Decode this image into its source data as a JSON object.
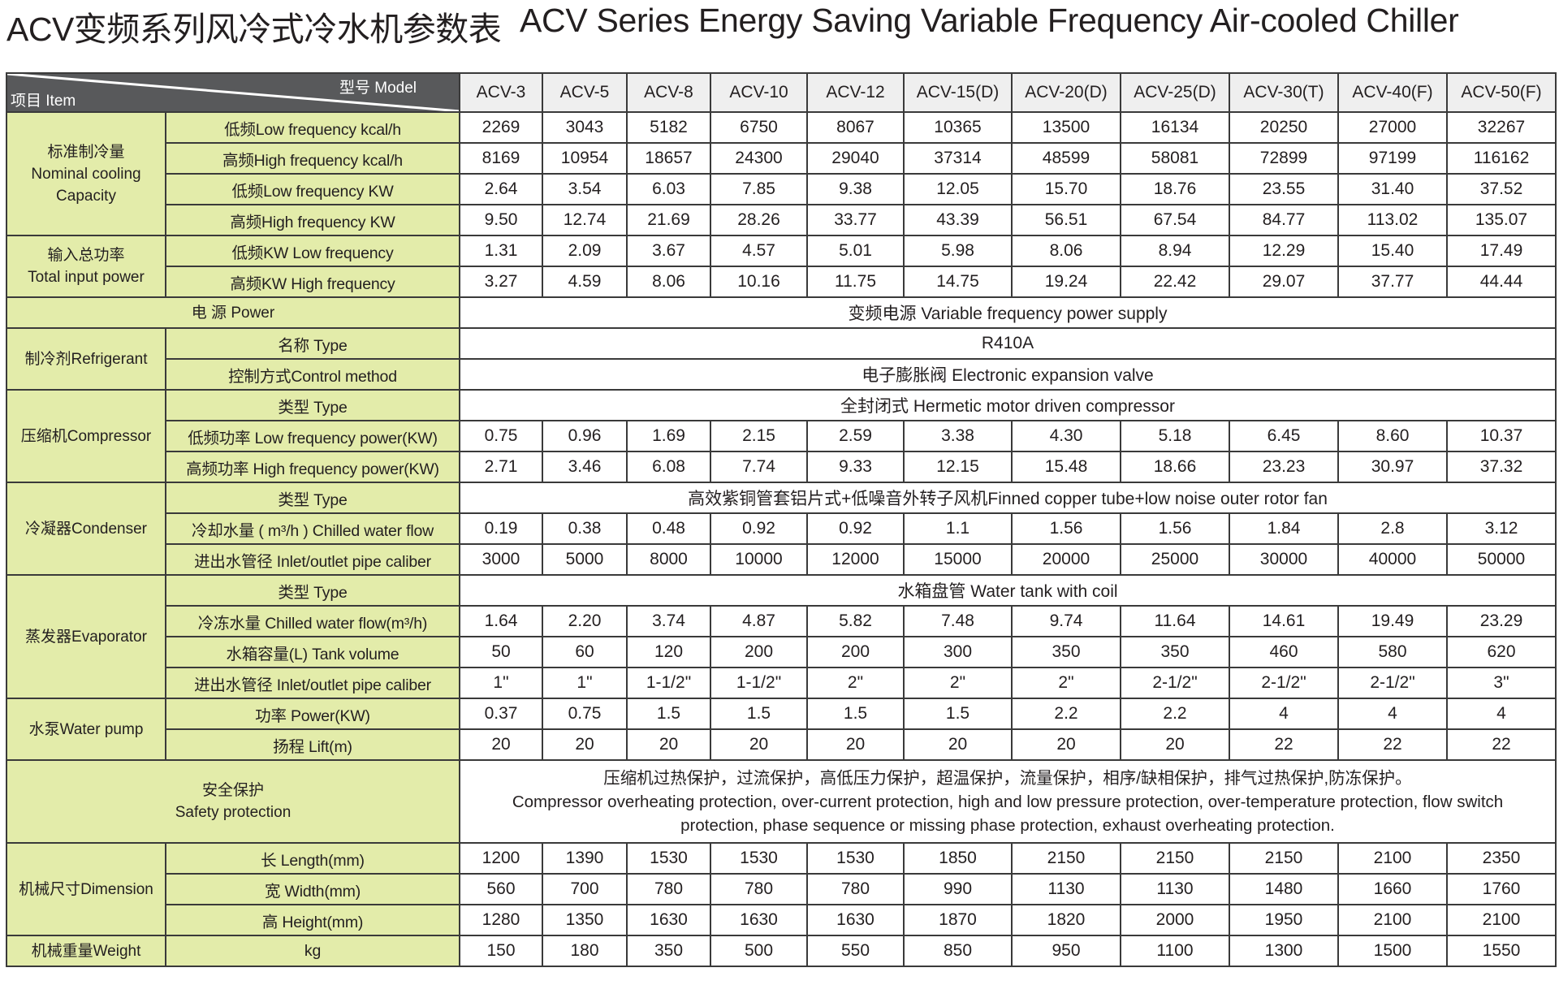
{
  "title_cn": "ACV变频系列风冷式冷水机参数表",
  "title_en": "ACV Series Energy Saving Variable Frequency Air-cooled Chiller",
  "colors": {
    "label_bg": "#e3ecaa",
    "header_dark": "#58595b",
    "header_light": "#efefef",
    "border": "#3a3a3a"
  },
  "header": {
    "model_label": "型号  Model",
    "item_label": "项目  Item",
    "models": [
      "ACV-3",
      "ACV-5",
      "ACV-8",
      "ACV-10",
      "ACV-12",
      "ACV-15(D)",
      "ACV-20(D)",
      "ACV-25(D)",
      "ACV-30(T)",
      "ACV-40(F)",
      "ACV-50(F)"
    ]
  },
  "groups": [
    {
      "label": "标准制冷量\nNominal cooling\nCapacity",
      "rows": [
        {
          "label": "低频Low frequency  kcal/h",
          "values": [
            "2269",
            "3043",
            "5182",
            "6750",
            "8067",
            "10365",
            "13500",
            "16134",
            "20250",
            "27000",
            "32267"
          ]
        },
        {
          "label": "高频High frequency  kcal/h",
          "values": [
            "8169",
            "10954",
            "18657",
            "24300",
            "29040",
            "37314",
            "48599",
            "58081",
            "72899",
            "97199",
            "116162"
          ]
        },
        {
          "label": "低频Low frequency KW",
          "values": [
            "2.64",
            "3.54",
            "6.03",
            "7.85",
            "9.38",
            "12.05",
            "15.70",
            "18.76",
            "23.55",
            "31.40",
            "37.52"
          ]
        },
        {
          "label": "高频High frequency KW",
          "values": [
            "9.50",
            "12.74",
            "21.69",
            "28.26",
            "33.77",
            "43.39",
            "56.51",
            "67.54",
            "84.77",
            "113.02",
            "135.07"
          ]
        }
      ]
    },
    {
      "label": "输入总功率\nTotal input power",
      "rows": [
        {
          "label": "低频KW    Low frequency",
          "values": [
            "1.31",
            "2.09",
            "3.67",
            "4.57",
            "5.01",
            "5.98",
            "8.06",
            "8.94",
            "12.29",
            "15.40",
            "17.49"
          ]
        },
        {
          "label": "高频KW   High frequency",
          "values": [
            "3.27",
            "4.59",
            "8.06",
            "10.16",
            "11.75",
            "14.75",
            "19.24",
            "22.42",
            "29.07",
            "37.77",
            "44.44"
          ]
        }
      ]
    },
    {
      "label": "电      源  Power",
      "full": true,
      "span": "变频电源 Variable frequency power supply"
    },
    {
      "label": "制冷剂Refrigerant",
      "rows": [
        {
          "label": "名称  Type",
          "span": "R410A"
        },
        {
          "label": "控制方式Control method",
          "span": "电子膨胀阀 Electronic expansion valve"
        }
      ]
    },
    {
      "label": "压缩机Compressor",
      "rows": [
        {
          "label": "类型 Type",
          "span": "全封闭式 Hermetic motor driven compressor"
        },
        {
          "label": "低频功率  Low frequency power(KW)",
          "values": [
            "0.75",
            "0.96",
            "1.69",
            "2.15",
            "2.59",
            "3.38",
            "4.30",
            "5.18",
            "6.45",
            "8.60",
            "10.37"
          ]
        },
        {
          "label": "高频功率 High frequency power(KW)",
          "values": [
            "2.71",
            "3.46",
            "6.08",
            "7.74",
            "9.33",
            "12.15",
            "15.48",
            "18.66",
            "23.23",
            "30.97",
            "37.32"
          ]
        }
      ]
    },
    {
      "label": "冷凝器Condenser",
      "rows": [
        {
          "label": "类型 Type",
          "span": "高效紫铜管套铝片式+低噪音外转子风机Finned copper tube+low noise outer rotor fan"
        },
        {
          "label": "冷却水量 ( m³/h ) Chilled water flow",
          "values": [
            "0.19",
            "0.38",
            "0.48",
            "0.92",
            "0.92",
            "1.1",
            "1.56",
            "1.56",
            "1.84",
            "2.8",
            "3.12"
          ]
        },
        {
          "label": "进出水管径 Inlet/outlet pipe caliber",
          "values": [
            "3000",
            "5000",
            "8000",
            "10000",
            "12000",
            "15000",
            "20000",
            "25000",
            "30000",
            "40000",
            "50000"
          ]
        }
      ]
    },
    {
      "label": "蒸发器Evaporator",
      "rows": [
        {
          "label": "类型 Type",
          "span": "水箱盘管 Water tank with coil"
        },
        {
          "label": "冷冻水量 Chilled water flow(m³/h)",
          "values": [
            "1.64",
            "2.20",
            "3.74",
            "4.87",
            "5.82",
            "7.48",
            "9.74",
            "11.64",
            "14.61",
            "19.49",
            "23.29"
          ]
        },
        {
          "label": "水箱容量(L)   Tank volume",
          "values": [
            "50",
            "60",
            "120",
            "200",
            "200",
            "300",
            "350",
            "350",
            "460",
            "580",
            "620"
          ]
        },
        {
          "label": "进出水管径   Inlet/outlet pipe caliber",
          "values": [
            "1\"",
            "1\"",
            "1-1/2\"",
            "1-1/2\"",
            "2\"",
            "2\"",
            "2\"",
            "2-1/2\"",
            "2-1/2\"",
            "2-1/2\"",
            "3\""
          ]
        }
      ]
    },
    {
      "label": "水泵Water pump",
      "rows": [
        {
          "label": "功率  Power(KW)",
          "values": [
            "0.37",
            "0.75",
            "1.5",
            "1.5",
            "1.5",
            "1.5",
            "2.2",
            "2.2",
            "4",
            "4",
            "4"
          ]
        },
        {
          "label": "扬程  Lift(m)",
          "values": [
            "20",
            "20",
            "20",
            "20",
            "20",
            "20",
            "20",
            "20",
            "22",
            "22",
            "22"
          ]
        }
      ]
    },
    {
      "label": "安全保护\nSafety protection",
      "full": true,
      "safety": true,
      "span": "压缩机过热保护，过流保护，高低压力保护，超温保护，流量保护，相序/缺相保护，排气过热保护,防冻保护。\nCompressor overheating protection, over-current protection, high and low pressure protection, over-temperature protection, flow switch protection, phase sequence or missing phase protection, exhaust overheating protection."
    },
    {
      "label": "机械尺寸Dimension",
      "rows": [
        {
          "label": "长  Length(mm)",
          "values": [
            "1200",
            "1390",
            "1530",
            "1530",
            "1530",
            "1850",
            "2150",
            "2150",
            "2150",
            "2100",
            "2350"
          ]
        },
        {
          "label": "宽  Width(mm)",
          "values": [
            "560",
            "700",
            "780",
            "780",
            "780",
            "990",
            "1130",
            "1130",
            "1480",
            "1660",
            "1760"
          ]
        },
        {
          "label": "高  Height(mm)",
          "values": [
            "1280",
            "1350",
            "1630",
            "1630",
            "1630",
            "1870",
            "1820",
            "2000",
            "1950",
            "2100",
            "2100"
          ]
        }
      ]
    },
    {
      "label": "机械重量Weight",
      "rows": [
        {
          "label": "kg",
          "values": [
            "150",
            "180",
            "350",
            "500",
            "550",
            "850",
            "950",
            "1100",
            "1300",
            "1500",
            "1550"
          ]
        }
      ]
    }
  ]
}
